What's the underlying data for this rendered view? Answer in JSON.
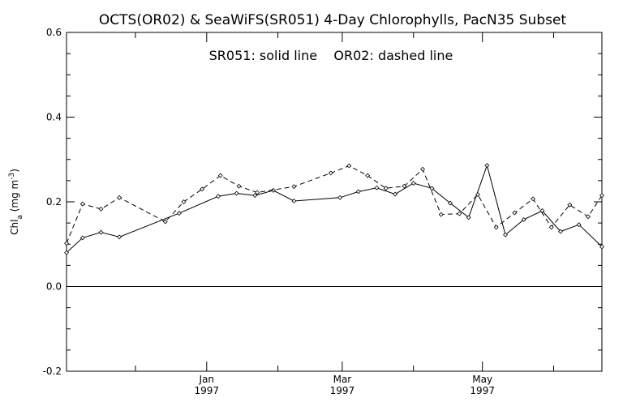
{
  "chart_data": {
    "type": "line",
    "title": "OCTS(OR02) & SeaWiFS(SR051) 4-Day Chlorophylls, PacN35 Subset",
    "annotation": "SR051: solid line    OR02: dashed line",
    "ylabel": "Chl",
    "ylabel_subscript": "a",
    "ylabel_units": " (mg m",
    "ylabel_units_sup": "-3",
    "ylabel_units_close": ")",
    "ylim": [
      -0.2,
      0.6
    ],
    "xlim": [
      "1996-11-01",
      "1997-06-22"
    ],
    "y_ticks": [
      {
        "value": -0.2,
        "label": "-0.2"
      },
      {
        "value": 0.0,
        "label": "0.0"
      },
      {
        "value": 0.2,
        "label": "0.2"
      },
      {
        "value": 0.4,
        "label": "0.4"
      },
      {
        "value": 0.6,
        "label": "0.6"
      }
    ],
    "x_major_ticks": [
      {
        "date": "1997-01-01",
        "label": "Jan",
        "year": "1997"
      },
      {
        "date": "1997-03-01",
        "label": "Mar",
        "year": "1997"
      },
      {
        "date": "1997-05-01",
        "label": "May",
        "year": "1997"
      }
    ],
    "x_minor_ticks": [
      "1996-11-01",
      "1996-12-01",
      "1997-02-01",
      "1997-04-01",
      "1997-06-01"
    ],
    "zero_line": true,
    "grid": false,
    "series": [
      {
        "name": "SR051",
        "style": "solid",
        "x": [
          "1996-11-01",
          "1996-11-08",
          "1996-11-16",
          "1996-11-24",
          "1996-12-20",
          "1997-01-06",
          "1997-01-14",
          "1997-01-22",
          "1997-01-30",
          "1997-02-08",
          "1997-02-28",
          "1997-03-08",
          "1997-03-16",
          "1997-03-24",
          "1997-04-01",
          "1997-04-09",
          "1997-04-17",
          "1997-04-25",
          "1997-05-03",
          "1997-05-11",
          "1997-05-19",
          "1997-05-27",
          "1997-06-04",
          "1997-06-12",
          "1997-06-22"
        ],
        "values": [
          0.08,
          0.115,
          0.128,
          0.117,
          0.173,
          0.213,
          0.22,
          0.215,
          0.227,
          0.202,
          0.21,
          0.224,
          0.233,
          0.218,
          0.244,
          0.232,
          0.197,
          0.163,
          0.286,
          0.122,
          0.158,
          0.179,
          0.13,
          0.146,
          0.094
        ]
      },
      {
        "name": "OR02",
        "style": "dashed",
        "x": [
          "1996-11-01",
          "1996-11-08",
          "1996-11-16",
          "1996-11-24",
          "1996-12-14",
          "1996-12-22",
          "1996-12-30",
          "1997-01-07",
          "1997-01-15",
          "1997-01-23",
          "1997-02-08",
          "1997-02-24",
          "1997-03-04",
          "1997-03-12",
          "1997-03-20",
          "1997-03-28",
          "1997-04-05",
          "1997-04-13",
          "1997-04-21",
          "1997-04-29",
          "1997-05-07",
          "1997-05-15",
          "1997-05-23",
          "1997-05-31",
          "1997-06-08",
          "1997-06-16",
          "1997-06-22"
        ],
        "values": [
          0.102,
          0.195,
          0.183,
          0.21,
          0.153,
          0.2,
          0.23,
          0.262,
          0.237,
          0.222,
          0.236,
          0.268,
          0.285,
          0.262,
          0.232,
          0.237,
          0.277,
          0.17,
          0.172,
          0.217,
          0.14,
          0.174,
          0.207,
          0.14,
          0.193,
          0.165,
          0.215
        ]
      }
    ]
  }
}
